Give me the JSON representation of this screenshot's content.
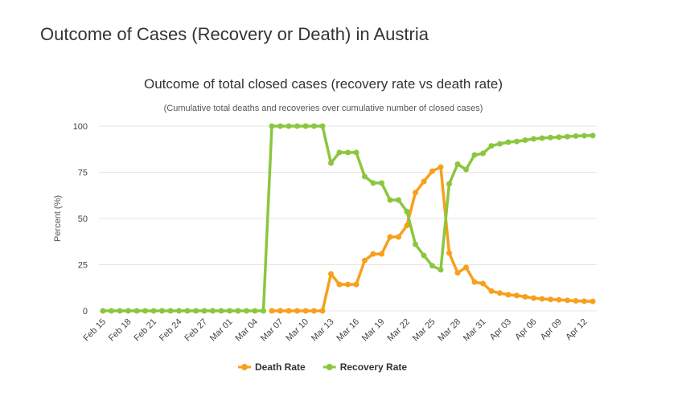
{
  "page": {
    "heading": "Outcome of Cases (Recovery or Death) in Austria"
  },
  "chart_data": {
    "type": "line",
    "title": "Outcome of total closed cases (recovery rate vs death rate)",
    "subtitle": "(Cumulative total deaths and recoveries over cumulative number of closed cases)",
    "xlabel": "",
    "ylabel": "Percent (%)",
    "ylim": [
      0,
      100
    ],
    "yticks": [
      "0",
      "25",
      "50",
      "75",
      "100"
    ],
    "grid": true,
    "legend_position": "bottom",
    "x": [
      "Feb 15",
      "Feb 16",
      "Feb 17",
      "Feb 18",
      "Feb 19",
      "Feb 20",
      "Feb 21",
      "Feb 22",
      "Feb 23",
      "Feb 24",
      "Feb 25",
      "Feb 26",
      "Feb 27",
      "Feb 28",
      "Feb 29",
      "Mar 01",
      "Mar 02",
      "Mar 03",
      "Mar 04",
      "Mar 05",
      "Mar 06",
      "Mar 07",
      "Mar 08",
      "Mar 09",
      "Mar 10",
      "Mar 11",
      "Mar 12",
      "Mar 13",
      "Mar 14",
      "Mar 15",
      "Mar 16",
      "Mar 17",
      "Mar 18",
      "Mar 19",
      "Mar 20",
      "Mar 21",
      "Mar 22",
      "Mar 23",
      "Mar 24",
      "Mar 25",
      "Mar 26",
      "Mar 27",
      "Mar 28",
      "Mar 29",
      "Mar 30",
      "Mar 31",
      "Apr 01",
      "Apr 02",
      "Apr 03",
      "Apr 04",
      "Apr 05",
      "Apr 06",
      "Apr 07",
      "Apr 08",
      "Apr 09",
      "Apr 10",
      "Apr 11",
      "Apr 12",
      "Apr 13"
    ],
    "x_tick_labels": [
      "Feb 15",
      "Feb 18",
      "Feb 21",
      "Feb 24",
      "Feb 27",
      "Mar 01",
      "Mar 04",
      "Mar 07",
      "Mar 10",
      "Mar 13",
      "Mar 16",
      "Mar 19",
      "Mar 22",
      "Mar 25",
      "Mar 28",
      "Mar 31",
      "Apr 03",
      "Apr 06",
      "Apr 09",
      "Apr 12"
    ],
    "series": [
      {
        "name": "Death Rate",
        "color": "#f7a01c",
        "values": [
          null,
          null,
          null,
          null,
          null,
          null,
          null,
          null,
          null,
          null,
          null,
          null,
          null,
          null,
          null,
          null,
          null,
          null,
          null,
          null,
          0,
          0,
          0,
          0,
          0,
          0,
          0,
          20,
          14.3,
          14.3,
          14.3,
          27.3,
          30.8,
          30.8,
          40,
          40,
          46.2,
          64,
          70,
          75.6,
          77.8,
          31.3,
          20.6,
          23.5,
          15.6,
          14.8,
          10.7,
          9.6,
          8.7,
          8.3,
          7.6,
          6.9,
          6.5,
          6.2,
          6,
          5.7,
          5.4,
          5.2,
          5.1
        ]
      },
      {
        "name": "Recovery Rate",
        "color": "#8cc63f",
        "values": [
          0,
          0,
          0,
          0,
          0,
          0,
          0,
          0,
          0,
          0,
          0,
          0,
          0,
          0,
          0,
          0,
          0,
          0,
          0,
          0,
          100,
          100,
          100,
          100,
          100,
          100,
          100,
          80,
          85.7,
          85.7,
          85.7,
          72.7,
          69.2,
          69.2,
          60,
          60,
          53.8,
          36,
          30,
          24.4,
          22.2,
          68.7,
          79.4,
          76.5,
          84.4,
          85.2,
          89.3,
          90.4,
          91.3,
          91.7,
          92.4,
          93.1,
          93.5,
          93.8,
          94,
          94.3,
          94.6,
          94.8,
          94.9
        ]
      }
    ]
  }
}
